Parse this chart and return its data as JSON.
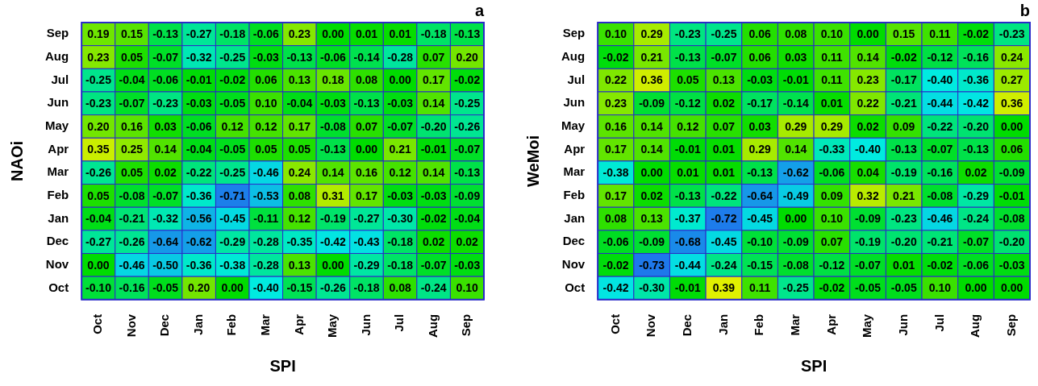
{
  "chart_data": [
    {
      "type": "heatmap",
      "title": "a",
      "xlabel": "SPI",
      "ylabel": "NAOi",
      "categories": [
        "Oct",
        "Nov",
        "Dec",
        "Jan",
        "Feb",
        "Mar",
        "Apr",
        "May",
        "Jun",
        "Jul",
        "Aug",
        "Sep"
      ],
      "y_categories": [
        "Sep",
        "Aug",
        "Jul",
        "Jun",
        "May",
        "Apr",
        "Mar",
        "Feb",
        "Jan",
        "Dec",
        "Nov",
        "Oct"
      ],
      "cells": [
        [
          0.19,
          0.15,
          -0.13,
          -0.27,
          -0.18,
          -0.06,
          0.23,
          0.0,
          0.01,
          0.01,
          -0.18,
          -0.13
        ],
        [
          0.23,
          0.05,
          -0.07,
          -0.32,
          -0.25,
          -0.03,
          -0.13,
          -0.06,
          -0.14,
          -0.28,
          0.07,
          0.2
        ],
        [
          -0.25,
          -0.04,
          -0.06,
          -0.01,
          -0.02,
          0.06,
          0.13,
          0.18,
          0.08,
          0.0,
          0.17,
          -0.02
        ],
        [
          -0.23,
          -0.07,
          -0.23,
          -0.03,
          -0.05,
          0.1,
          -0.04,
          -0.03,
          -0.13,
          -0.03,
          0.14,
          -0.25
        ],
        [
          0.2,
          0.16,
          0.03,
          -0.06,
          0.12,
          0.12,
          0.17,
          -0.08,
          0.07,
          -0.07,
          -0.2,
          -0.26
        ],
        [
          0.35,
          0.25,
          0.14,
          -0.04,
          -0.05,
          0.05,
          0.05,
          -0.13,
          0.0,
          0.21,
          -0.01,
          -0.07
        ],
        [
          -0.26,
          0.05,
          0.02,
          -0.22,
          -0.25,
          -0.46,
          0.24,
          0.14,
          0.16,
          0.12,
          0.14,
          -0.13
        ],
        [
          0.05,
          -0.08,
          -0.07,
          -0.36,
          -0.71,
          -0.53,
          0.08,
          0.31,
          0.17,
          -0.03,
          -0.03,
          -0.09
        ],
        [
          -0.04,
          -0.21,
          -0.32,
          -0.56,
          -0.45,
          -0.11,
          0.12,
          -0.19,
          -0.27,
          -0.3,
          -0.02,
          -0.04
        ],
        [
          -0.27,
          -0.26,
          -0.64,
          -0.62,
          -0.29,
          -0.28,
          -0.35,
          -0.42,
          -0.43,
          -0.18,
          0.02,
          0.02
        ],
        [
          0.0,
          -0.46,
          -0.5,
          -0.36,
          -0.38,
          -0.28,
          0.13,
          0.0,
          -0.29,
          -0.18,
          -0.07,
          -0.03
        ],
        [
          -0.1,
          -0.16,
          -0.05,
          0.2,
          0.0,
          -0.4,
          -0.15,
          -0.26,
          -0.18,
          0.08,
          -0.24,
          0.1
        ]
      ],
      "cell_labels": [
        [
          "0.19",
          "0.15",
          "-0.13",
          "-0.27",
          "-0.18",
          "-0.06",
          "0.23",
          "0.00",
          "0.01",
          "0.01",
          "-0.18",
          "-0.13"
        ],
        [
          "0.23",
          "0.05",
          "-0.07",
          "-0.32",
          "-0.25",
          "-0.03",
          "-0.13",
          "-0.06",
          "-0.14",
          "-0.28",
          "0.07",
          "0.20"
        ],
        [
          "-0.25",
          "-0.04",
          "-0.06",
          "-0.01",
          "-0.02",
          "0.06",
          "0.13",
          "0.18",
          "0.08",
          "0.00",
          "0.17",
          "-0.02"
        ],
        [
          "-0.23",
          "-0.07",
          "-0.23",
          "-0.03",
          "-0.05",
          "0.10",
          "-0.04",
          "-0.03",
          "-0.13",
          "-0.03",
          "0.14",
          "-0.25"
        ],
        [
          "0.20",
          "0.16",
          "0.03",
          "-0.06",
          "0.12",
          "0.12",
          "0.17",
          "-0.08",
          "0.07",
          "-0.07",
          "-0.20",
          "-0.26"
        ],
        [
          "0.35",
          "0.25",
          "0.14",
          "-0.04",
          "-0.05",
          "0.05",
          "0.05",
          "-0.13",
          "0.00",
          "0.21",
          "-0.01",
          "-0.07"
        ],
        [
          "-0.26",
          "0.05",
          "0.02",
          "-0.22",
          "-0.25",
          "-0.46",
          "0.24",
          "0.14",
          "0.16",
          "0.12",
          "0.14",
          "-0.13"
        ],
        [
          "0.05",
          "-0.08",
          "-0.07",
          "-0.36",
          "-0.71",
          "-0.53",
          "0.08",
          "0.31",
          "0.17",
          "-0.03",
          "-0.03",
          "-0.09"
        ],
        [
          "-0.04",
          "-0.21",
          "-0.32",
          "-0.56",
          "-0.45",
          "-0.11",
          "0.12",
          "-0.19",
          "-0.27",
          "-0.30",
          "-0.02",
          "-0.04"
        ],
        [
          "-0.27",
          "-0.26",
          "-0.64",
          "-0.62",
          "-0.29",
          "-0.28",
          "-0.35",
          "-0.42",
          "-0.43",
          "-0.18",
          "0.02",
          "0.02"
        ],
        [
          "0.00",
          "-0.46",
          "-0.50",
          "-0.36",
          "-0.38",
          "-0.28",
          "0.13",
          "0.00",
          "-0.29",
          "-0.18",
          "-0.07",
          "-0.03"
        ],
        [
          "-0.10",
          "-0.16",
          "-0.05",
          "0.20",
          "0.00",
          "-0.40",
          "-0.15",
          "-0.26",
          "-0.18",
          "0.08",
          "-0.24",
          "0.10"
        ]
      ]
    },
    {
      "type": "heatmap",
      "title": "b",
      "xlabel": "SPI",
      "ylabel": "WeMoi",
      "categories": [
        "Oct",
        "Nov",
        "Dec",
        "Jan",
        "Feb",
        "Mar",
        "Apr",
        "May",
        "Jun",
        "Jul",
        "Aug",
        "Sep"
      ],
      "y_categories": [
        "Sep",
        "Aug",
        "Jul",
        "Jun",
        "May",
        "Apr",
        "Mar",
        "Feb",
        "Jan",
        "Dec",
        "Nov",
        "Oct"
      ],
      "cells": [
        [
          0.1,
          0.29,
          -0.23,
          -0.25,
          0.06,
          0.08,
          0.1,
          0.0,
          0.15,
          0.11,
          -0.02,
          -0.23
        ],
        [
          -0.02,
          0.21,
          -0.13,
          -0.07,
          0.06,
          0.03,
          0.11,
          0.14,
          -0.02,
          -0.12,
          -0.16,
          0.24
        ],
        [
          0.22,
          0.36,
          0.05,
          0.13,
          -0.03,
          -0.01,
          0.11,
          0.23,
          -0.17,
          -0.4,
          -0.36,
          0.27
        ],
        [
          0.23,
          -0.09,
          -0.12,
          0.02,
          -0.17,
          -0.14,
          0.01,
          0.22,
          -0.21,
          -0.44,
          -0.42,
          0.36
        ],
        [
          0.16,
          0.14,
          0.12,
          0.07,
          0.03,
          0.29,
          0.29,
          0.02,
          0.09,
          -0.22,
          -0.2,
          0.0
        ],
        [
          0.17,
          0.14,
          -0.01,
          0.01,
          0.29,
          0.14,
          -0.33,
          -0.4,
          -0.13,
          -0.07,
          -0.13,
          0.06
        ],
        [
          -0.38,
          0.0,
          0.01,
          0.01,
          -0.13,
          -0.62,
          -0.06,
          0.04,
          -0.19,
          -0.16,
          0.02,
          -0.09
        ],
        [
          0.17,
          0.02,
          -0.13,
          -0.22,
          -0.64,
          -0.49,
          0.09,
          0.32,
          0.21,
          -0.08,
          -0.29,
          -0.01
        ],
        [
          0.08,
          0.13,
          -0.37,
          -0.72,
          -0.45,
          0.0,
          0.1,
          -0.09,
          -0.23,
          -0.46,
          -0.24,
          -0.08
        ],
        [
          -0.06,
          -0.09,
          -0.68,
          -0.45,
          -0.1,
          -0.09,
          0.07,
          -0.19,
          -0.2,
          -0.21,
          -0.07,
          -0.2
        ],
        [
          -0.02,
          -0.73,
          -0.44,
          -0.24,
          -0.15,
          -0.08,
          -0.12,
          -0.07,
          0.01,
          -0.02,
          -0.06,
          -0.03
        ],
        [
          -0.42,
          -0.3,
          -0.01,
          0.39,
          0.11,
          -0.25,
          -0.02,
          -0.05,
          -0.05,
          0.1,
          0.0,
          0.0
        ]
      ],
      "cell_labels": [
        [
          "0.10",
          "0.29",
          "-0.23",
          "-0.25",
          "0.06",
          "0.08",
          "0.10",
          "0.00",
          "0.15",
          "0.11",
          "-0.02",
          "-0.23"
        ],
        [
          "-0.02",
          "0.21",
          "-0.13",
          "-0.07",
          "0.06",
          "0.03",
          "0.11",
          "0.14",
          "-0.02",
          "-0.12",
          "-0.16",
          "0.24"
        ],
        [
          "0.22",
          "0.36",
          "0.05",
          "0.13",
          "-0.03",
          "-0.01",
          "0.11",
          "0.23",
          "-0.17",
          "-0.40",
          "-0.36",
          "0.27"
        ],
        [
          "0.23",
          "-0.09",
          "-0.12",
          "0.02",
          "-0.17",
          "-0.14",
          "0.01",
          "0.22",
          "-0.21",
          "-0.44",
          "-0.42",
          "0.36"
        ],
        [
          "0.16",
          "0.14",
          "0.12",
          "0.07",
          "0.03",
          "0.29",
          "0.29",
          "0.02",
          "0.09",
          "-0.22",
          "-0.20",
          "0.00"
        ],
        [
          "0.17",
          "0.14",
          "-0.01",
          "0.01",
          "0.29",
          "0.14",
          "-0.33",
          "-0.40",
          "-0.13",
          "-0.07",
          "-0.13",
          "0.06"
        ],
        [
          "-0.38",
          "0.00",
          "0.01",
          "0.01",
          "-0.13",
          "-0.62",
          "-0.06",
          "0.04",
          "-0.19",
          "-0.16",
          "0.02",
          "-0.09"
        ],
        [
          "0.17",
          "0.02",
          "-0.13",
          "-0.22",
          "-0.64",
          "-0.49",
          "0.09",
          "0.32",
          "0.21",
          "-0.08",
          "-0.29",
          "-0.01"
        ],
        [
          "0.08",
          "0.13",
          "-0.37",
          "-0.72",
          "-0.45",
          "0.00",
          "0.10",
          "-0.09",
          "-0.23",
          "-0.46",
          "-0.24",
          "-0.08"
        ],
        [
          "-0.06",
          "-0.09",
          "-0.68",
          "-0.45",
          "-0.10",
          "-0.09",
          "0.07",
          "-0.19",
          "-0.20",
          "-0.21",
          "-0.07",
          "-0.20"
        ],
        [
          "-0.02",
          "-0.73",
          "-0.44",
          "-0.24",
          "-0.15",
          "-0.08",
          "-0.12",
          "-0.07",
          "0.01",
          "-0.02",
          "-0.06",
          "-0.03"
        ],
        [
          "-0.42",
          "-0.30",
          "-0.01",
          "0.39",
          "0.11",
          "-0.25",
          "-0.02",
          "-0.05",
          "-0.05",
          "0.10",
          "0.00",
          "0.00"
        ]
      ]
    }
  ]
}
